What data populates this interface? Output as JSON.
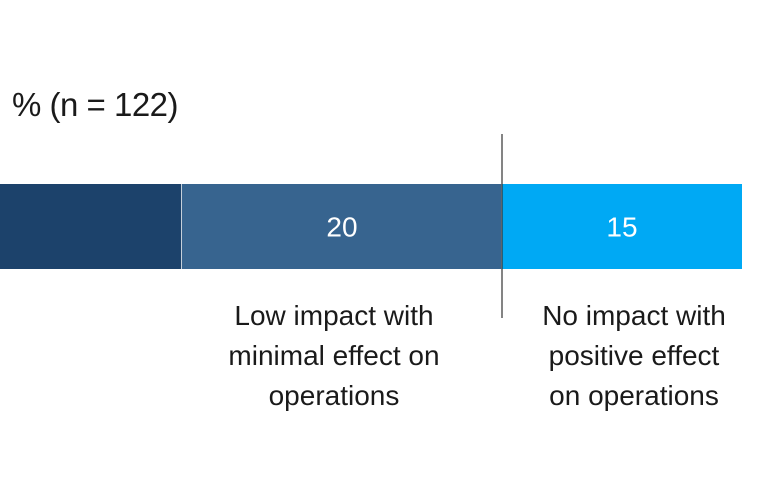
{
  "unit_label": "% (n = 122)",
  "chart_data": {
    "type": "bar",
    "orientation": "horizontal-stacked",
    "title": "",
    "xlabel": "",
    "ylabel": "% (n = 122)",
    "segments": [
      {
        "category": "",
        "value": null,
        "value_label": "",
        "color": "#1c426b",
        "text_lines": []
      },
      {
        "category": "Low impact with minimal effect on operations",
        "value": 20,
        "value_label": "20",
        "color": "#37648f",
        "text_lines": [
          "Low impact with",
          "minimal effect on",
          "operations"
        ]
      },
      {
        "category": "No impact with positive effect on operations",
        "value": 15,
        "value_label": "15",
        "color": "#00a9f4",
        "text_lines": [
          "No impact with",
          "positive effect",
          "on operations"
        ]
      }
    ],
    "divider_after_segment": 1,
    "legend": "none",
    "grid": false
  }
}
